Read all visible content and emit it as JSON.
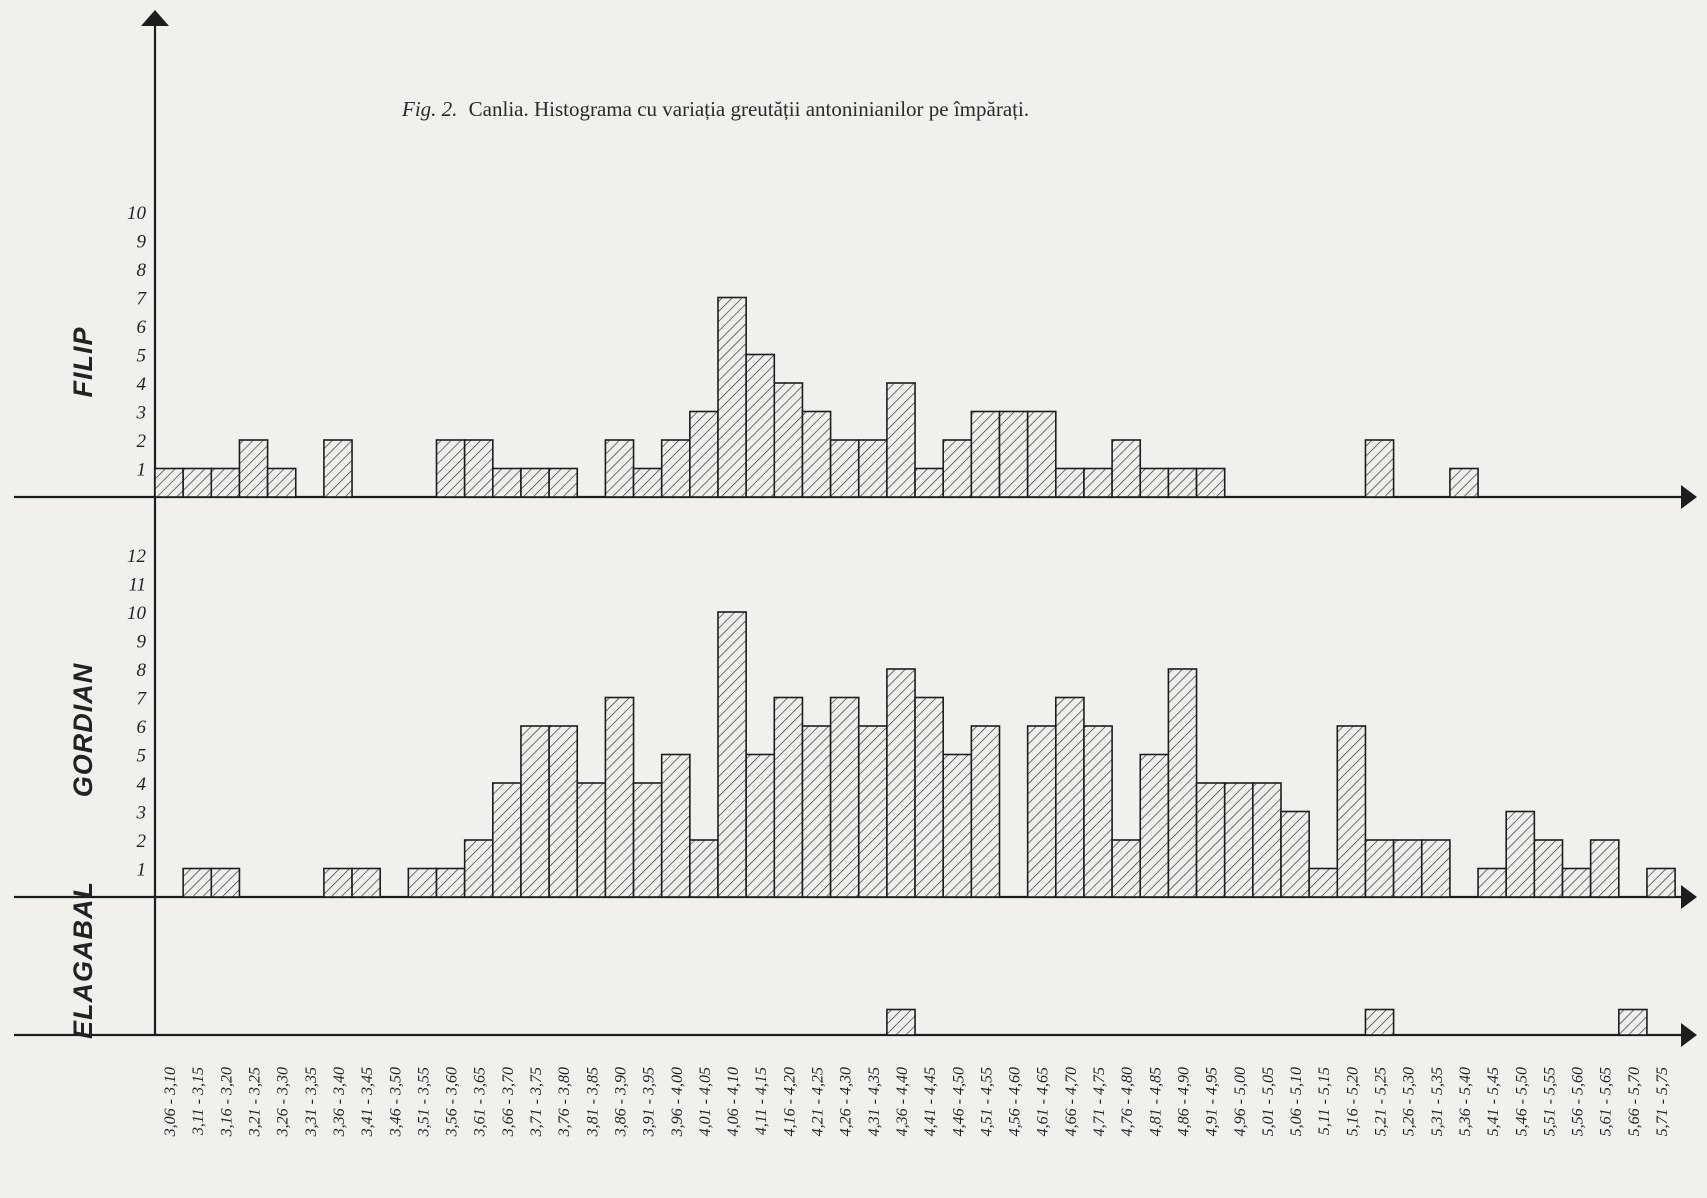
{
  "caption": {
    "fig_label": "Fig. 2.",
    "text": "Canlia. Histograma cu variația greutății antoninianilor pe împărați."
  },
  "colors": {
    "ink": "#1d1d1d",
    "paper": "#f1f0ec"
  },
  "chart_data": {
    "type": "bar",
    "title": "Fig. 2. Canlia. Histograma cu variația greutății antoninianilor pe împărați.",
    "categories": [
      "3,06 - 3,10",
      "3,11 - 3,15",
      "3,16 - 3,20",
      "3,21 - 3,25",
      "3,26 - 3,30",
      "3,31 - 3,35",
      "3,36 - 3,40",
      "3,41 - 3,45",
      "3,46 - 3,50",
      "3,51 - 3,55",
      "3,56 - 3,60",
      "3,61 - 3,65",
      "3,66 - 3,70",
      "3,71 - 3,75",
      "3,76 - 3,80",
      "3,81 - 3,85",
      "3,86 - 3,90",
      "3,91 - 3,95",
      "3,96 - 4,00",
      "4,01 - 4,05",
      "4,06 - 4,10",
      "4,11 - 4,15",
      "4,16 - 4,20",
      "4,21 - 4,25",
      "4,26 - 4,30",
      "4,31 - 4,35",
      "4,36 - 4,40",
      "4,41 - 4,45",
      "4,46 - 4,50",
      "4,51 - 4,55",
      "4,56 - 4,60",
      "4,61 - 4,65",
      "4,66 - 4,70",
      "4,71 - 4,75",
      "4,76 - 4,80",
      "4,81 - 4,85",
      "4,86 - 4,90",
      "4,91 - 4,95",
      "4,96 - 5,00",
      "5,01 - 5,05",
      "5,06 - 5,10",
      "5,11 - 5,15",
      "5,16 - 5,20",
      "5,21 - 5,25",
      "5,26 - 5,30",
      "5,31 - 5,35",
      "5,36 - 5,40",
      "5,41 - 5,45",
      "5,46 - 5,50",
      "5,51 - 5,55",
      "5,56 - 5,60",
      "5,61 - 5,65",
      "5,66 - 5,70",
      "5,71 - 5,75"
    ],
    "series": [
      {
        "name": "FILIP",
        "yticks": [
          "1",
          "2",
          "3",
          "4",
          "5",
          "6",
          "7",
          "8",
          "9",
          "10"
        ],
        "ylim": [
          0,
          10
        ],
        "values": [
          1,
          1,
          1,
          2,
          1,
          0,
          2,
          0,
          0,
          0,
          2,
          2,
          1,
          1,
          1,
          0,
          2,
          1,
          2,
          3,
          7,
          5,
          4,
          3,
          2,
          2,
          4,
          1,
          2,
          3,
          3,
          3,
          1,
          1,
          2,
          1,
          1,
          1,
          0,
          0,
          0,
          0,
          0,
          2,
          0,
          0,
          1,
          0,
          0,
          0,
          0,
          0,
          0,
          0
        ]
      },
      {
        "name": "GORDIAN",
        "yticks": [
          "1",
          "2",
          "3",
          "4",
          "5",
          "6",
          "7",
          "8",
          "9",
          "10",
          "11",
          "12"
        ],
        "ylim": [
          0,
          12
        ],
        "values": [
          0,
          1,
          1,
          0,
          0,
          0,
          1,
          1,
          0,
          1,
          1,
          2,
          4,
          6,
          6,
          4,
          7,
          4,
          5,
          2,
          10,
          5,
          7,
          6,
          7,
          6,
          8,
          7,
          5,
          6,
          0,
          6,
          7,
          6,
          2,
          5,
          8,
          4,
          4,
          4,
          3,
          1,
          6,
          2,
          2,
          2,
          0,
          1,
          3,
          2,
          1,
          2,
          0,
          1
        ]
      },
      {
        "name": "ELAGABAL",
        "yticks": [],
        "ylim": [
          0,
          1
        ],
        "values": [
          0,
          0,
          0,
          0,
          0,
          0,
          0,
          0,
          0,
          0,
          0,
          0,
          0,
          0,
          0,
          0,
          0,
          0,
          0,
          0,
          0,
          0,
          0,
          0,
          0,
          0,
          1,
          0,
          0,
          0,
          0,
          0,
          0,
          0,
          0,
          0,
          0,
          0,
          0,
          0,
          0,
          0,
          0,
          1,
          0,
          0,
          0,
          0,
          0,
          0,
          0,
          0,
          1,
          0
        ]
      }
    ],
    "grid": false,
    "legend": "none"
  }
}
